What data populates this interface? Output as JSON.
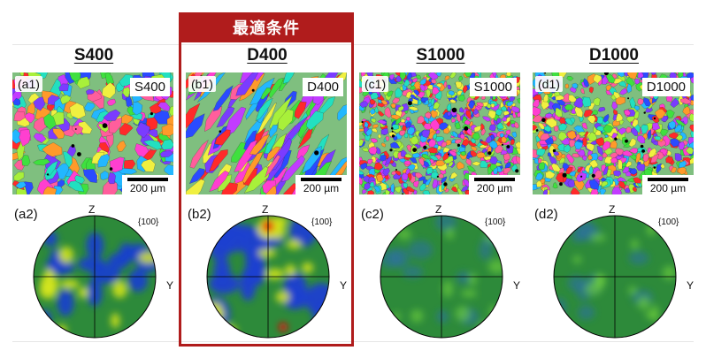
{
  "banner": {
    "label": "最適条件"
  },
  "panels": [
    {
      "id": "S400",
      "title": "S400",
      "map_label": "(a1)",
      "map_tag": "S400",
      "scale": "200 µm",
      "pf_label": "(a2)",
      "pf_z": "Z",
      "pf_y": "Y",
      "pf_family": "{100}"
    },
    {
      "id": "D400",
      "title": "D400",
      "map_label": "(b1)",
      "map_tag": "D400",
      "scale": "200 µm",
      "pf_label": "(b2)",
      "pf_z": "Z",
      "pf_y": "Y",
      "pf_family": "{100}"
    },
    {
      "id": "S1000",
      "title": "S1000",
      "map_label": "(c1)",
      "map_tag": "S1000",
      "scale": "200 µm",
      "pf_label": "(c2)",
      "pf_z": "Z",
      "pf_y": "Y",
      "pf_family": "{100}"
    },
    {
      "id": "D1000",
      "title": "D1000",
      "map_label": "(d1)",
      "map_tag": "D1000",
      "scale": "200 µm",
      "pf_label": "(d2)",
      "pf_z": "Z",
      "pf_y": "Y",
      "pf_family": "{100}"
    }
  ],
  "colors": {
    "highlight": "#b01c1c",
    "pf_base": "#2d8a3a",
    "pf_low": "#1a3fd0",
    "pf_high": "#d8e81a",
    "pf_peak": "#e01010"
  }
}
